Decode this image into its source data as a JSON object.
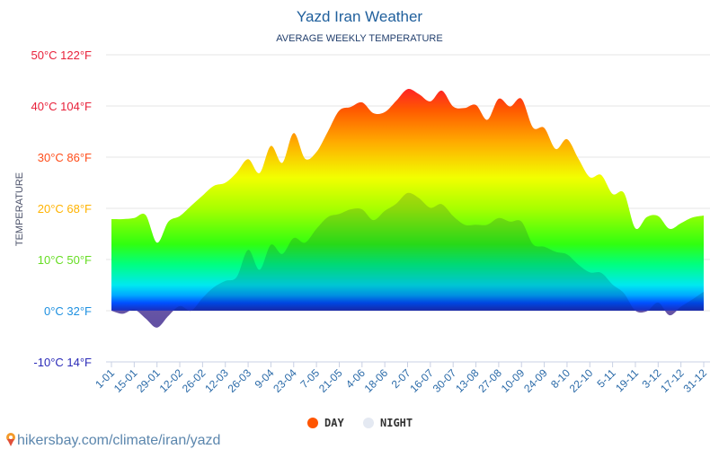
{
  "chart_data": {
    "type": "area",
    "title": "Yazd Iran Weather",
    "subtitle": "AVERAGE WEEKLY TEMPERATURE",
    "ylabel": "TEMPERATURE",
    "ylim": [
      -10,
      50
    ],
    "grid": true,
    "legend_position": "bottom",
    "y_ticks": [
      {
        "value": 50,
        "label": "50°C 122°F",
        "color": "#e8213a"
      },
      {
        "value": 40,
        "label": "40°C 104°F",
        "color": "#e8213a"
      },
      {
        "value": 30,
        "label": "30°C 86°F",
        "color": "#ff4d1a"
      },
      {
        "value": 20,
        "label": "20°C 68°F",
        "color": "#ffb300"
      },
      {
        "value": 10,
        "label": "10°C 50°F",
        "color": "#66dd22"
      },
      {
        "value": 0,
        "label": "0°C 32°F",
        "color": "#1e90e0"
      },
      {
        "value": -10,
        "label": "-10°C 14°F",
        "color": "#2a2ab8"
      }
    ],
    "x_tick_labels": [
      "1-01",
      "15-01",
      "29-01",
      "12-02",
      "26-02",
      "12-03",
      "26-03",
      "9-04",
      "23-04",
      "7-05",
      "21-05",
      "4-06",
      "18-06",
      "2-07",
      "16-07",
      "30-07",
      "13-08",
      "27-08",
      "10-09",
      "24-09",
      "8-10",
      "22-10",
      "5-11",
      "19-11",
      "3-12",
      "17-12",
      "31-12"
    ],
    "series": [
      {
        "name": "DAY",
        "color": "#ff5500",
        "values": [
          17.9,
          17.9,
          18.1,
          18.7,
          13.3,
          17.4,
          18.5,
          20.5,
          22.5,
          24.4,
          25,
          27,
          29.6,
          26.9,
          32.2,
          28.9,
          34.7,
          29.7,
          31,
          35,
          39.1,
          39.8,
          40.7,
          38.6,
          38.8,
          41,
          43.3,
          42.3,
          40.9,
          43,
          39.9,
          39.6,
          40.2,
          37.3,
          41.4,
          39.9,
          41.4,
          35.8,
          35.7,
          31.6,
          33.5,
          29.7,
          26.1,
          26.5,
          22.8,
          23,
          16.1,
          18.3,
          18.5,
          16,
          17.1,
          18.2,
          18.6
        ]
      },
      {
        "name": "NIGHT",
        "color": "#e4e9f2",
        "values": [
          0,
          -0.6,
          0.2,
          -1.5,
          -3.3,
          -1,
          0.9,
          0,
          2.5,
          4.6,
          5.8,
          6.6,
          11.9,
          8,
          12.9,
          11.1,
          14.2,
          13.3,
          16,
          18.3,
          18.9,
          19.8,
          19.8,
          17.7,
          19.5,
          20.9,
          23,
          22,
          20.1,
          20.8,
          18.5,
          16.8,
          16.8,
          16.8,
          18.1,
          17.4,
          17.4,
          13,
          12.5,
          11.5,
          11,
          9,
          7.5,
          7.4,
          5.1,
          3.4,
          0,
          -0.1,
          1.6,
          -0.9,
          0.8,
          2.2,
          3.7
        ]
      }
    ]
  },
  "source": "hikersbay.com/climate/iran/yazd"
}
